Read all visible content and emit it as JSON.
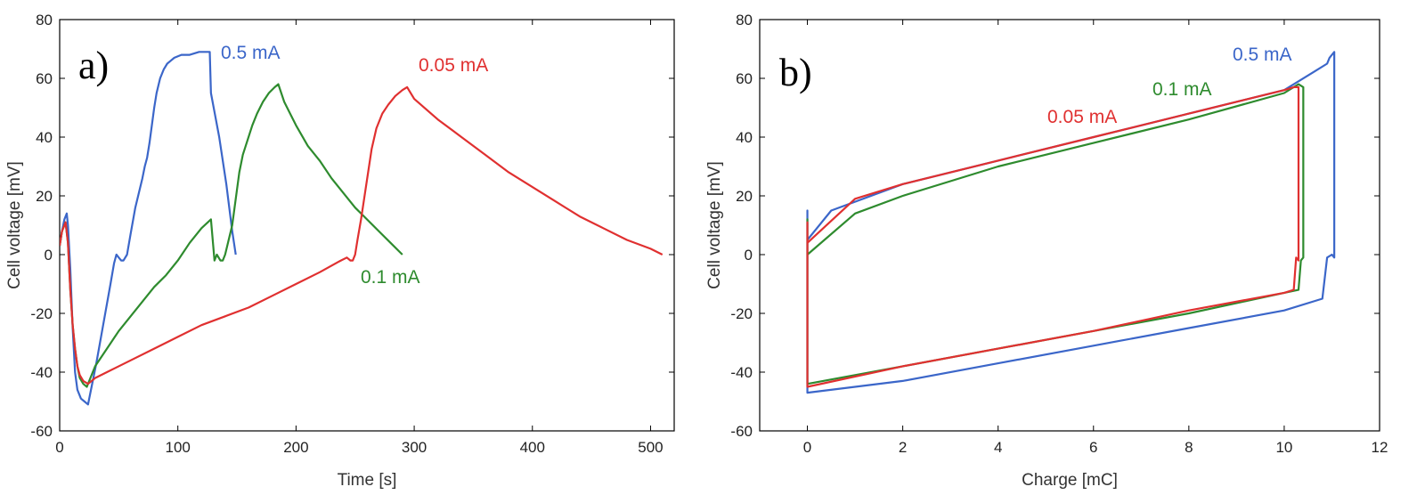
{
  "chart_data": [
    {
      "type": "line",
      "panel_label": "a)",
      "xlabel": "Time [s]",
      "ylabel": "Cell voltage [mV]",
      "xlim": [
        0,
        520
      ],
      "ylim": [
        -60,
        80
      ],
      "xticks": [
        0,
        100,
        200,
        300,
        400,
        500
      ],
      "yticks": [
        -60,
        -40,
        -20,
        0,
        20,
        40,
        60,
        80
      ],
      "grid": false,
      "series": [
        {
          "name": "0.5 mA",
          "color": "#3b66c9",
          "points": [
            [
              0,
              3
            ],
            [
              2,
              8
            ],
            [
              4,
              12
            ],
            [
              6,
              14
            ],
            [
              7,
              10
            ],
            [
              9,
              -5
            ],
            [
              11,
              -25
            ],
            [
              13,
              -40
            ],
            [
              15,
              -46
            ],
            [
              18,
              -49
            ],
            [
              21,
              -50
            ],
            [
              24,
              -51
            ],
            [
              27,
              -45
            ],
            [
              31,
              -37
            ],
            [
              35,
              -28
            ],
            [
              39,
              -19
            ],
            [
              43,
              -10
            ],
            [
              46,
              -3
            ],
            [
              48,
              0
            ],
            [
              50,
              -1
            ],
            [
              52,
              -2
            ],
            [
              54,
              -2
            ],
            [
              57,
              0
            ],
            [
              60,
              7
            ],
            [
              64,
              16
            ],
            [
              67,
              21
            ],
            [
              70,
              26
            ],
            [
              72,
              30
            ],
            [
              74,
              33
            ],
            [
              76,
              38
            ],
            [
              78,
              44
            ],
            [
              80,
              50
            ],
            [
              82,
              55
            ],
            [
              85,
              60
            ],
            [
              88,
              63
            ],
            [
              91,
              65
            ],
            [
              94,
              66
            ],
            [
              97,
              67
            ],
            [
              103,
              68
            ],
            [
              110,
              68
            ],
            [
              118,
              69
            ],
            [
              126,
              69
            ],
            [
              127,
              69
            ],
            [
              128,
              55
            ],
            [
              135,
              40
            ],
            [
              141,
              24
            ],
            [
              146,
              8
            ],
            [
              149,
              0
            ]
          ]
        },
        {
          "name": "0.1 mA",
          "color": "#2e8b2e",
          "points": [
            [
              0,
              3
            ],
            [
              2,
              8
            ],
            [
              4,
              10
            ],
            [
              5,
              11
            ],
            [
              7,
              4
            ],
            [
              9,
              -12
            ],
            [
              11,
              -24
            ],
            [
              13,
              -32
            ],
            [
              15,
              -38
            ],
            [
              17,
              -42
            ],
            [
              20,
              -44
            ],
            [
              23,
              -45
            ],
            [
              30,
              -38
            ],
            [
              40,
              -32
            ],
            [
              50,
              -26
            ],
            [
              60,
              -21
            ],
            [
              70,
              -16
            ],
            [
              80,
              -11
            ],
            [
              90,
              -7
            ],
            [
              100,
              -2
            ],
            [
              110,
              4
            ],
            [
              120,
              9
            ],
            [
              128,
              12
            ],
            [
              131,
              -2
            ],
            [
              133,
              0
            ],
            [
              136,
              -2
            ],
            [
              138,
              -2
            ],
            [
              140,
              0
            ],
            [
              143,
              5
            ],
            [
              146,
              10
            ],
            [
              148,
              16
            ],
            [
              150,
              22
            ],
            [
              152,
              28
            ],
            [
              155,
              34
            ],
            [
              159,
              39
            ],
            [
              163,
              44
            ],
            [
              167,
              48
            ],
            [
              172,
              52
            ],
            [
              177,
              55
            ],
            [
              182,
              57
            ],
            [
              185,
              58
            ],
            [
              190,
              52
            ],
            [
              200,
              44
            ],
            [
              210,
              37
            ],
            [
              220,
              32
            ],
            [
              230,
              26
            ],
            [
              240,
              21
            ],
            [
              250,
              16
            ],
            [
              260,
              12
            ],
            [
              270,
              8
            ],
            [
              280,
              4
            ],
            [
              290,
              0
            ]
          ]
        },
        {
          "name": "0.05 mA",
          "color": "#e03030",
          "points": [
            [
              0,
              3
            ],
            [
              2,
              8
            ],
            [
              4,
              10
            ],
            [
              5,
              11
            ],
            [
              7,
              4
            ],
            [
              9,
              -12
            ],
            [
              11,
              -24
            ],
            [
              13,
              -32
            ],
            [
              15,
              -38
            ],
            [
              17,
              -41
            ],
            [
              20,
              -43
            ],
            [
              24,
              -44
            ],
            [
              30,
              -42
            ],
            [
              40,
              -40
            ],
            [
              60,
              -36
            ],
            [
              80,
              -32
            ],
            [
              100,
              -28
            ],
            [
              120,
              -24
            ],
            [
              140,
              -21
            ],
            [
              160,
              -18
            ],
            [
              180,
              -14
            ],
            [
              200,
              -10
            ],
            [
              220,
              -6
            ],
            [
              238,
              -2
            ],
            [
              243,
              -1
            ],
            [
              246,
              -2
            ],
            [
              248,
              -2
            ],
            [
              250,
              0
            ],
            [
              252,
              5
            ],
            [
              255,
              12
            ],
            [
              258,
              20
            ],
            [
              261,
              28
            ],
            [
              264,
              36
            ],
            [
              268,
              43
            ],
            [
              273,
              48
            ],
            [
              278,
              51
            ],
            [
              284,
              54
            ],
            [
              290,
              56
            ],
            [
              294,
              57
            ],
            [
              300,
              53
            ],
            [
              320,
              46
            ],
            [
              340,
              40
            ],
            [
              360,
              34
            ],
            [
              380,
              28
            ],
            [
              400,
              23
            ],
            [
              420,
              18
            ],
            [
              440,
              13
            ],
            [
              460,
              9
            ],
            [
              480,
              5
            ],
            [
              500,
              2
            ],
            [
              510,
              0
            ]
          ]
        }
      ]
    },
    {
      "type": "line",
      "panel_label": "b)",
      "xlabel": "Charge [mC]",
      "ylabel": "Cell voltage [mV]",
      "xlim": [
        -1,
        12
      ],
      "ylim": [
        -60,
        80
      ],
      "xticks": [
        0,
        2,
        4,
        6,
        8,
        10,
        12
      ],
      "yticks": [
        -60,
        -40,
        -20,
        0,
        20,
        40,
        60,
        80
      ],
      "grid": false,
      "series": [
        {
          "name": "0.5 mA",
          "color": "#3b66c9",
          "points": [
            [
              0,
              3
            ],
            [
              0,
              15
            ],
            [
              0,
              -47
            ],
            [
              2,
              -43
            ],
            [
              4,
              -37
            ],
            [
              6,
              -31
            ],
            [
              8,
              -25
            ],
            [
              10,
              -19
            ],
            [
              10.8,
              -15
            ],
            [
              10.9,
              -1
            ],
            [
              11.0,
              0
            ],
            [
              11.05,
              -1
            ],
            [
              11.05,
              20
            ],
            [
              11.05,
              69
            ],
            [
              10.95,
              67
            ],
            [
              10.9,
              65
            ],
            [
              10.6,
              62
            ],
            [
              10,
              56
            ],
            [
              8,
              48
            ],
            [
              6,
              40
            ],
            [
              4,
              32
            ],
            [
              2,
              24
            ],
            [
              1,
              18
            ],
            [
              0.5,
              15
            ],
            [
              0,
              5
            ],
            [
              0,
              3
            ]
          ]
        },
        {
          "name": "0.1 mA",
          "color": "#2e8b2e",
          "points": [
            [
              0,
              0
            ],
            [
              0,
              12
            ],
            [
              0,
              -44
            ],
            [
              2,
              -38
            ],
            [
              4,
              -32
            ],
            [
              6,
              -26
            ],
            [
              8,
              -20
            ],
            [
              10,
              -13
            ],
            [
              10.3,
              -12
            ],
            [
              10.35,
              -2
            ],
            [
              10.4,
              -1
            ],
            [
              10.4,
              57
            ],
            [
              10.3,
              58
            ],
            [
              10,
              55
            ],
            [
              8,
              46
            ],
            [
              6,
              38
            ],
            [
              4,
              30
            ],
            [
              2,
              20
            ],
            [
              1,
              14
            ],
            [
              0,
              0
            ]
          ]
        },
        {
          "name": "0.05 mA",
          "color": "#e03030",
          "points": [
            [
              0,
              3
            ],
            [
              0,
              11
            ],
            [
              0,
              -45
            ],
            [
              2,
              -38
            ],
            [
              4,
              -32
            ],
            [
              6,
              -26
            ],
            [
              8,
              -19
            ],
            [
              10,
              -13
            ],
            [
              10.2,
              -12
            ],
            [
              10.25,
              -1
            ],
            [
              10.3,
              -2
            ],
            [
              10.3,
              57
            ],
            [
              10.2,
              57
            ],
            [
              10,
              56
            ],
            [
              8,
              48
            ],
            [
              6,
              40
            ],
            [
              4,
              32
            ],
            [
              2,
              24
            ],
            [
              1,
              19
            ],
            [
              0,
              4
            ],
            [
              0,
              3
            ]
          ]
        }
      ]
    }
  ]
}
